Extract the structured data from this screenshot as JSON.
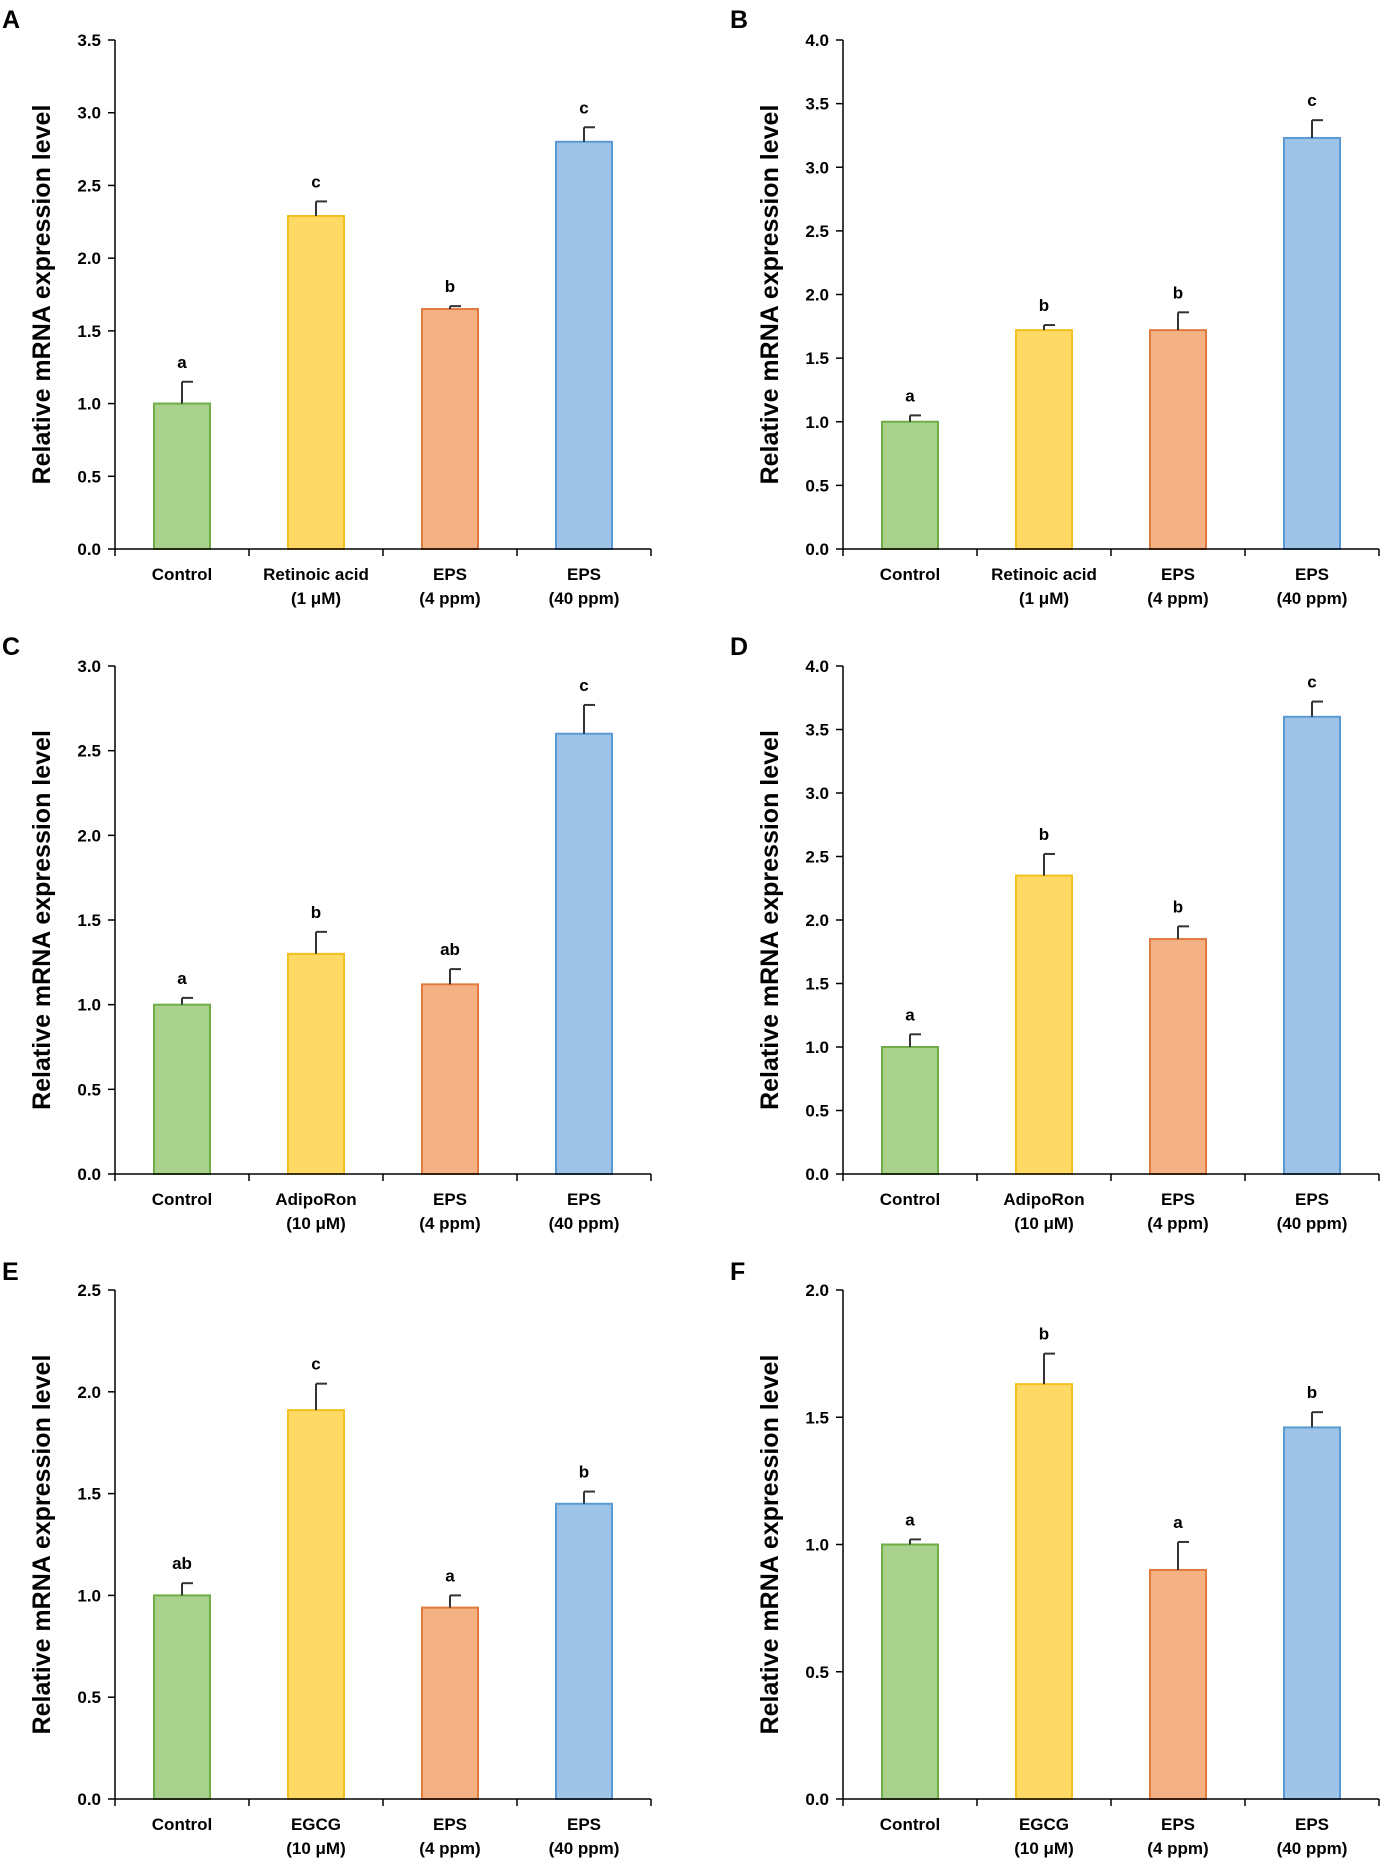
{
  "colors": {
    "control": {
      "fill": "#A9D18E",
      "stroke": "#70AD47"
    },
    "reference": {
      "fill": "#FFD966",
      "stroke": "#F4C020"
    },
    "eps4": {
      "fill": "#F4B183",
      "stroke": "#E07A3E"
    },
    "eps40": {
      "fill": "#9DC3E6",
      "stroke": "#5B9BD5"
    },
    "axis": "#000000",
    "errorbar": "#333333"
  },
  "chart_data": [
    {
      "panel": "A",
      "type": "bar",
      "ylabel": "Relative mRNA expression level",
      "ylim": [
        0,
        3.5
      ],
      "yticks": [
        "0.0",
        "0.5",
        "1.0",
        "1.5",
        "2.0",
        "2.5",
        "3.0",
        "3.5"
      ],
      "categories": [
        [
          "Control"
        ],
        [
          "Retinoic acid",
          "(1 μM)"
        ],
        [
          "EPS",
          "(4 ppm)"
        ],
        [
          "EPS",
          "(40 ppm)"
        ]
      ],
      "values": [
        1.0,
        2.29,
        1.65,
        2.8
      ],
      "errors": [
        0.15,
        0.1,
        0.02,
        0.1
      ],
      "significance": [
        "a",
        "c",
        "b",
        "c"
      ]
    },
    {
      "panel": "B",
      "type": "bar",
      "ylabel": "Relative mRNA expression level",
      "ylim": [
        0,
        4.0
      ],
      "yticks": [
        "0.0",
        "0.5",
        "1.0",
        "1.5",
        "2.0",
        "2.5",
        "3.0",
        "3.5",
        "4.0"
      ],
      "categories": [
        [
          "Control"
        ],
        [
          "Retinoic acid",
          "(1 μM)"
        ],
        [
          "EPS",
          "(4 ppm)"
        ],
        [
          "EPS",
          "(40 ppm)"
        ]
      ],
      "values": [
        1.0,
        1.72,
        1.72,
        3.23
      ],
      "errors": [
        0.05,
        0.04,
        0.14,
        0.14
      ],
      "significance": [
        "a",
        "b",
        "b",
        "c"
      ]
    },
    {
      "panel": "C",
      "type": "bar",
      "ylabel": "Relative mRNA expression level",
      "ylim": [
        0,
        3.0
      ],
      "yticks": [
        "0.0",
        "0.5",
        "1.0",
        "1.5",
        "2.0",
        "2.5",
        "3.0"
      ],
      "categories": [
        [
          "Control"
        ],
        [
          "AdipoRon",
          "(10 μM)"
        ],
        [
          "EPS",
          "(4 ppm)"
        ],
        [
          "EPS",
          "(40 ppm)"
        ]
      ],
      "values": [
        1.0,
        1.3,
        1.12,
        2.6
      ],
      "errors": [
        0.04,
        0.13,
        0.09,
        0.17
      ],
      "significance": [
        "a",
        "b",
        "ab",
        "c"
      ]
    },
    {
      "panel": "D",
      "type": "bar",
      "ylabel": "Relative mRNA expression level",
      "ylim": [
        0,
        4.0
      ],
      "yticks": [
        "0.0",
        "0.5",
        "1.0",
        "1.5",
        "2.0",
        "2.5",
        "3.0",
        "3.5",
        "4.0"
      ],
      "categories": [
        [
          "Control"
        ],
        [
          "AdipoRon",
          "(10 μM)"
        ],
        [
          "EPS",
          "(4 ppm)"
        ],
        [
          "EPS",
          "(40 ppm)"
        ]
      ],
      "values": [
        1.0,
        2.35,
        1.85,
        3.6
      ],
      "errors": [
        0.1,
        0.17,
        0.1,
        0.12
      ],
      "significance": [
        "a",
        "b",
        "b",
        "c"
      ]
    },
    {
      "panel": "E",
      "type": "bar",
      "ylabel": "Relative mRNA expression level",
      "ylim": [
        0,
        2.5
      ],
      "yticks": [
        "0.0",
        "0.5",
        "1.0",
        "1.5",
        "2.0",
        "2.5"
      ],
      "categories": [
        [
          "Control"
        ],
        [
          "EGCG",
          "(10 μM)"
        ],
        [
          "EPS",
          "(4 ppm)"
        ],
        [
          "EPS",
          "(40 ppm)"
        ]
      ],
      "values": [
        1.0,
        1.91,
        0.94,
        1.45
      ],
      "errors": [
        0.06,
        0.13,
        0.06,
        0.06
      ],
      "significance": [
        "ab",
        "c",
        "a",
        "b"
      ]
    },
    {
      "panel": "F",
      "type": "bar",
      "ylabel": "Relative mRNA expression level",
      "ylim": [
        0,
        2.0
      ],
      "yticks": [
        "0.0",
        "0.5",
        "1.0",
        "1.5",
        "2.0"
      ],
      "categories": [
        [
          "Control"
        ],
        [
          "EGCG",
          "(10 μM)"
        ],
        [
          "EPS",
          "(4 ppm)"
        ],
        [
          "EPS",
          "(40 ppm)"
        ]
      ],
      "values": [
        1.0,
        1.63,
        0.9,
        1.46
      ],
      "errors": [
        0.02,
        0.12,
        0.11,
        0.06
      ],
      "significance": [
        "a",
        "b",
        "a",
        "b"
      ]
    }
  ]
}
